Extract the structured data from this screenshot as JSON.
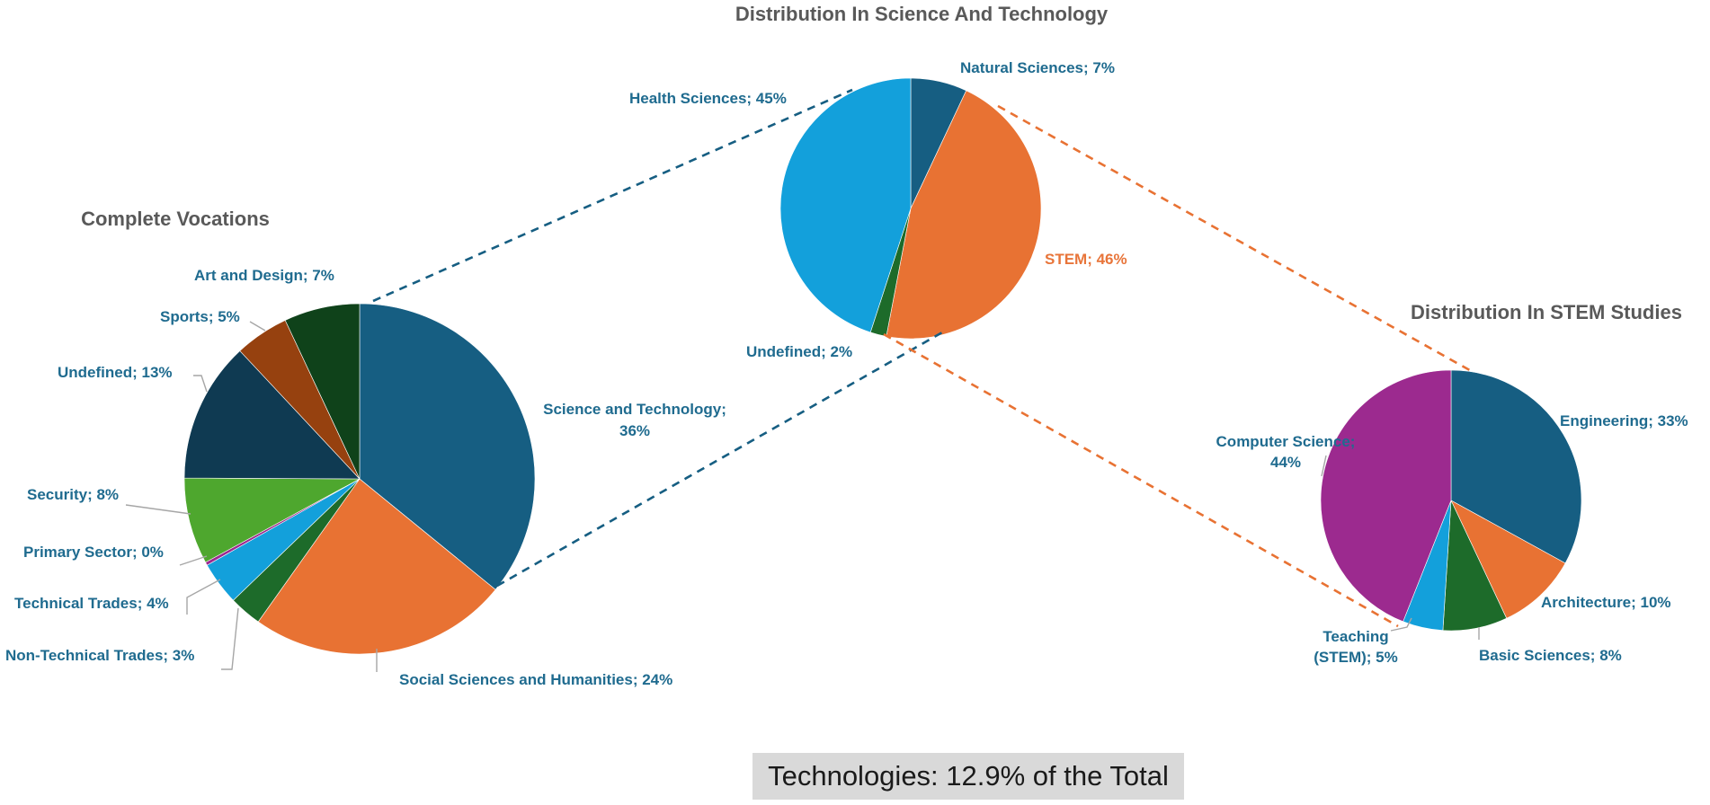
{
  "chart_data": [
    {
      "type": "pie",
      "title": "Complete Vocations",
      "slices": [
        {
          "label": "Science and Technology; 36%",
          "value": 36,
          "color": "#165e82"
        },
        {
          "label": "Social Sciences and Humanities; 24%",
          "value": 24,
          "color": "#e87233"
        },
        {
          "label": "Non-Technical Trades; 3%",
          "value": 3,
          "color": "#1d6b2a"
        },
        {
          "label": "Technical Trades; 4%",
          "value": 4,
          "color": "#13a0db"
        },
        {
          "label": "Primary Sector; 0%",
          "value": 0.3,
          "color": "#9c2a8f"
        },
        {
          "label": "Security; 8%",
          "value": 8,
          "color": "#4ea72e"
        },
        {
          "label": "Undefined; 13%",
          "value": 13,
          "color": "#0f3a52"
        },
        {
          "label": "Sports; 5%",
          "value": 5,
          "color": "#96410f"
        },
        {
          "label": "Art and Design; 7%",
          "value": 7,
          "color": "#0f421a"
        }
      ]
    },
    {
      "type": "pie",
      "title": "Distribution In Science And Technology",
      "slices": [
        {
          "label": "Natural Sciences; 7%",
          "value": 7,
          "color": "#165e82"
        },
        {
          "label": "STEM; 46%",
          "value": 46,
          "color": "#e87233"
        },
        {
          "label": "Undefined; 2%",
          "value": 2,
          "color": "#1d6b2a"
        },
        {
          "label": "Health Sciences; 45%",
          "value": 45,
          "color": "#13a0db"
        }
      ]
    },
    {
      "type": "pie",
      "title": "Distribution In STEM Studies",
      "slices": [
        {
          "label": "Engineering; 33%",
          "value": 33,
          "color": "#165e82"
        },
        {
          "label": "Architecture; 10%",
          "value": 10,
          "color": "#e87233"
        },
        {
          "label": "Basic Sciences; 8%",
          "value": 8,
          "color": "#1d6b2a"
        },
        {
          "label": "Teaching (STEM); 5%",
          "value": 5,
          "color": "#13a0db"
        },
        {
          "label": "Computer Science; 44%",
          "value": 44,
          "color": "#9c2a8f"
        }
      ]
    }
  ],
  "caption": "Technologies: 12.9% of the Total",
  "colors": {
    "connector_blue": "#165e82",
    "connector_orange": "#e87233",
    "label_text": "#1f6b8f",
    "title_text": "#595959"
  }
}
